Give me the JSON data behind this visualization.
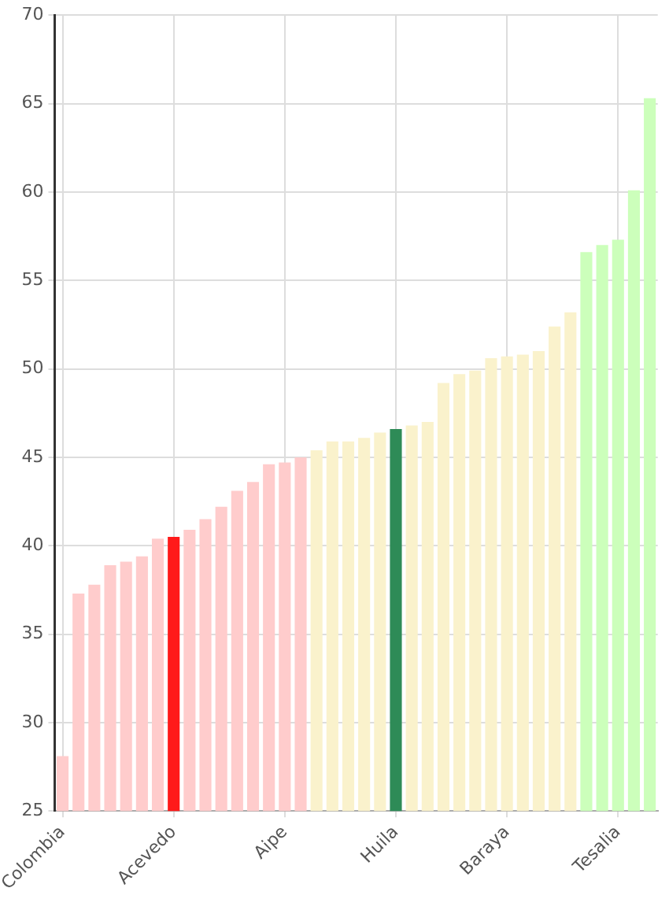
{
  "chart_data": {
    "type": "bar",
    "categories": [
      "Colombia",
      null,
      null,
      null,
      null,
      null,
      null,
      "Acevedo",
      null,
      null,
      null,
      null,
      null,
      null,
      "Aipe",
      null,
      null,
      null,
      null,
      null,
      null,
      "Huila",
      null,
      null,
      null,
      null,
      null,
      null,
      "Baraya",
      null,
      null,
      null,
      null,
      null,
      null,
      "Tesalia",
      null,
      null
    ],
    "values": [
      28.1,
      37.3,
      37.8,
      38.9,
      39.1,
      39.4,
      40.4,
      40.5,
      40.9,
      41.5,
      42.2,
      43.1,
      43.6,
      44.6,
      44.7,
      45.0,
      45.4,
      45.9,
      45.9,
      46.1,
      46.4,
      46.6,
      46.8,
      47.0,
      49.2,
      49.7,
      49.9,
      50.6,
      50.7,
      50.8,
      51.0,
      52.4,
      53.2,
      56.6,
      57.0,
      57.3,
      60.1,
      65.3
    ],
    "colors": [
      "#ffcccc",
      "#ffcccc",
      "#ffcccc",
      "#ffcccc",
      "#ffcccc",
      "#ffcccc",
      "#ffcccc",
      "#ff1a1a",
      "#ffcccc",
      "#ffcccc",
      "#ffcccc",
      "#ffcccc",
      "#ffcccc",
      "#ffcccc",
      "#ffcccc",
      "#ffcccc",
      "#faf2cc",
      "#faf2cc",
      "#faf2cc",
      "#faf2cc",
      "#faf2cc",
      "#2e8b57",
      "#faf2cc",
      "#faf2cc",
      "#faf2cc",
      "#faf2cc",
      "#faf2cc",
      "#faf2cc",
      "#faf2cc",
      "#faf2cc",
      "#faf2cc",
      "#faf2cc",
      "#faf2cc",
      "#ccffbb",
      "#ccffbb",
      "#ccffbb",
      "#ccffbb",
      "#ccffbb"
    ],
    "ylim": [
      25,
      70
    ],
    "yticks": [
      25,
      30,
      35,
      40,
      45,
      50,
      55,
      60,
      65,
      70
    ],
    "grid": true
  }
}
